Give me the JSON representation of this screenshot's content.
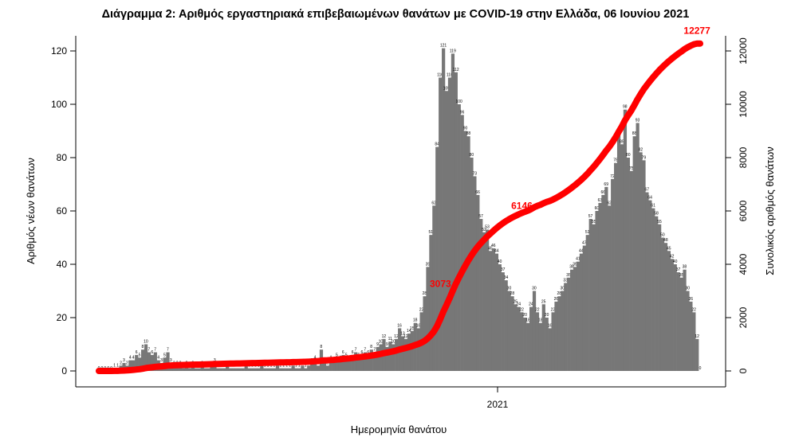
{
  "chart_data": {
    "type": "bar",
    "title": "Διάγραμμα 2: Αριθμός εργαστηριακά επιβεβαιωμένων θανάτων με COVID-19 στην Ελλάδα, 06 Ιουνίου 2021",
    "xlabel": "Ημερομηνία θανάτου",
    "ylabel": "Αριθμός νέων θανάτων",
    "y2label": "Συνολικός αριθμός θανάτων",
    "ylim": [
      0,
      120
    ],
    "y2lim": [
      0,
      12000
    ],
    "yticks": [
      "0",
      "20",
      "40",
      "60",
      "80",
      "100",
      "120"
    ],
    "y2ticks": [
      "0",
      "2000",
      "4000",
      "6000",
      "8000",
      "10000",
      "12000"
    ],
    "xticks": [
      "2021"
    ],
    "bar_color": "#777777",
    "line_color": "#ff0000",
    "values": [
      0,
      0,
      0,
      0,
      0,
      1,
      1,
      2,
      3,
      2,
      4,
      4,
      6,
      5,
      8,
      10,
      7,
      6,
      7,
      4,
      3,
      5,
      7,
      3,
      2,
      2,
      2,
      1,
      2,
      1,
      2,
      1,
      1,
      2,
      1,
      1,
      2,
      3,
      1,
      1,
      1,
      2,
      1,
      1,
      1,
      1,
      1,
      2,
      1,
      1,
      1,
      1,
      2,
      1,
      1,
      1,
      1,
      2,
      1,
      1,
      1,
      1,
      2,
      1,
      1,
      2,
      1,
      2,
      3,
      4,
      2,
      8,
      3,
      2,
      4,
      3,
      5,
      4,
      6,
      5,
      4,
      6,
      7,
      5,
      6,
      7,
      6,
      8,
      7,
      9,
      10,
      12,
      9,
      11,
      10,
      12,
      16,
      13,
      12,
      14,
      15,
      18,
      16,
      22,
      28,
      39,
      51,
      62,
      84,
      110,
      121,
      105,
      110,
      119,
      112,
      100,
      96,
      90,
      88,
      80,
      73,
      66,
      57,
      52,
      53,
      45,
      46,
      44,
      40,
      37,
      34,
      30,
      28,
      25,
      24,
      22,
      20,
      18,
      24,
      30,
      22,
      18,
      25,
      20,
      16,
      22,
      26,
      28,
      30,
      33,
      35,
      38,
      39,
      41,
      44,
      47,
      51,
      57,
      55,
      60,
      63,
      66,
      69,
      62,
      72,
      78,
      89,
      85,
      98,
      80,
      75,
      88,
      93,
      82,
      79,
      67,
      64,
      61,
      58,
      55,
      50,
      48,
      45,
      42,
      40,
      37,
      35,
      38,
      30,
      26,
      22,
      12,
      0
    ],
    "cumulative_labels": [
      "3073",
      "6146",
      "12277"
    ],
    "cumulative_total": 12277
  }
}
